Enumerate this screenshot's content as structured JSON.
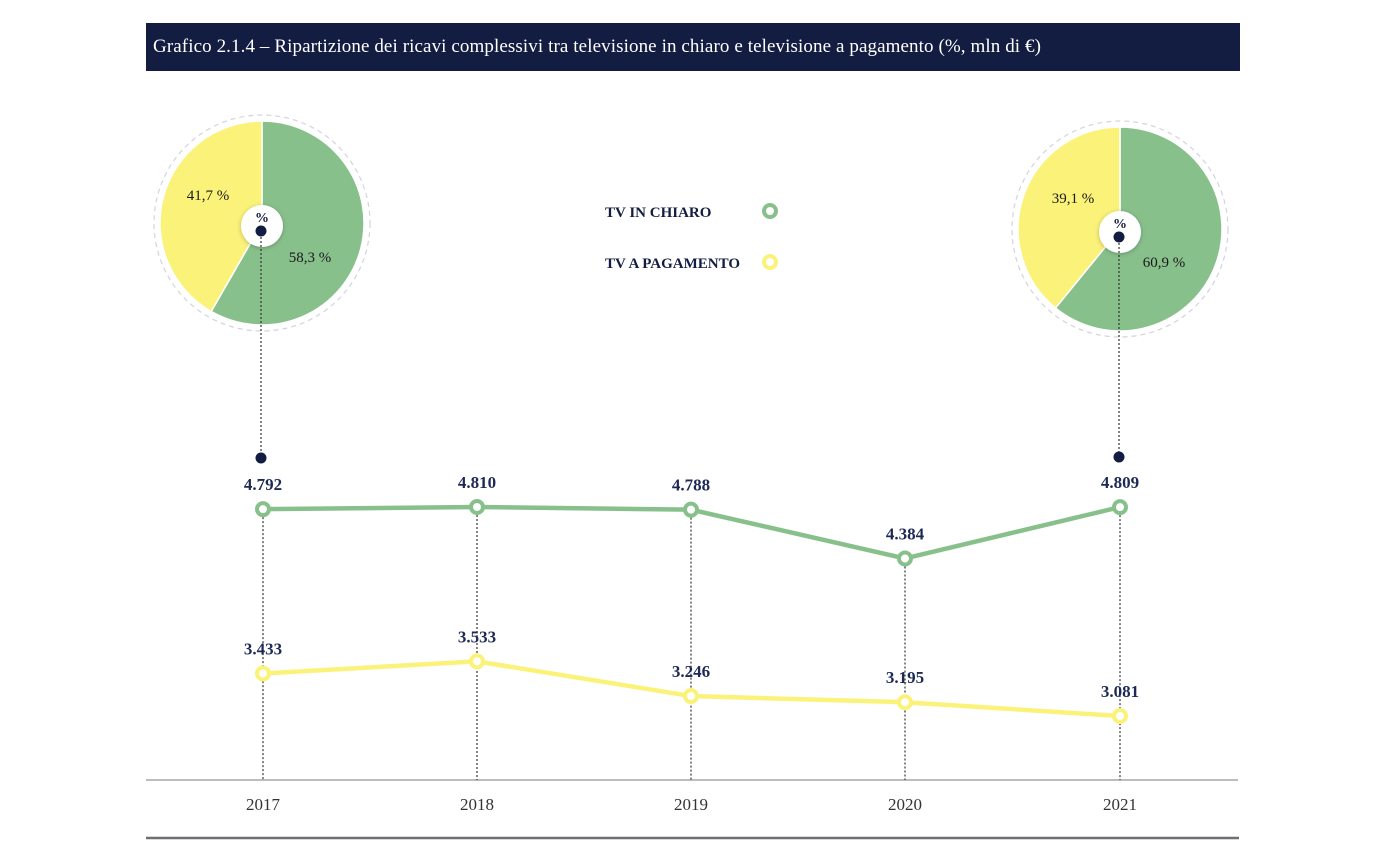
{
  "title": "Grafico 2.1.4 – Ripartizione dei ricavi complessivi tra televisione in chiaro e televisione a pagamento (%, mln di €)",
  "colors": {
    "title_bg": "#131d42",
    "tv_in_chiaro": "#88c08c",
    "tv_a_pagamento": "#fbf27a",
    "label_text": "#1e2a55",
    "marker_dot": "#131d42",
    "axis": "#bdbdbd",
    "bottom_rule": "#6f6f74"
  },
  "legend": [
    {
      "label": "TV IN CHIARO",
      "series": "tv_in_chiaro",
      "icon": "ring-marker-icon"
    },
    {
      "label": "TV A PAGAMENTO",
      "series": "tv_a_pagamento",
      "icon": "ring-marker-icon"
    }
  ],
  "chart_data": [
    {
      "type": "line",
      "title": "Grafico 2.1.4 – Ripartizione dei ricavi complessivi tra televisione in chiaro e televisione a pagamento (%, mln di €)",
      "xlabel": "",
      "ylabel": "mln di €",
      "categories": [
        "2017",
        "2018",
        "2019",
        "2020",
        "2021"
      ],
      "series": [
        {
          "name": "TV IN CHIARO",
          "values": [
            4792,
            4810,
            4788,
            4384,
            4809
          ],
          "labels": [
            "4.792",
            "4.810",
            "4.788",
            "4.384",
            "4.809"
          ]
        },
        {
          "name": "TV A PAGAMENTO",
          "values": [
            3433,
            3533,
            3246,
            3195,
            3081
          ],
          "labels": [
            "3.433",
            "3.533",
            "3.246",
            "3.195",
            "3.081"
          ]
        }
      ],
      "grid": false,
      "legend_position": "top-center"
    },
    {
      "type": "pie",
      "year": "2017",
      "center_label": "%",
      "slices": [
        {
          "name": "TV IN CHIARO",
          "value": 58.3,
          "label": "58,3 %"
        },
        {
          "name": "TV A PAGAMENTO",
          "value": 41.7,
          "label": "41,7 %"
        }
      ]
    },
    {
      "type": "pie",
      "year": "2021",
      "center_label": "%",
      "slices": [
        {
          "name": "TV IN CHIARO",
          "value": 60.9,
          "label": "60,9 %"
        },
        {
          "name": "TV A PAGAMENTO",
          "value": 39.1,
          "label": "39,1 %"
        }
      ]
    }
  ]
}
